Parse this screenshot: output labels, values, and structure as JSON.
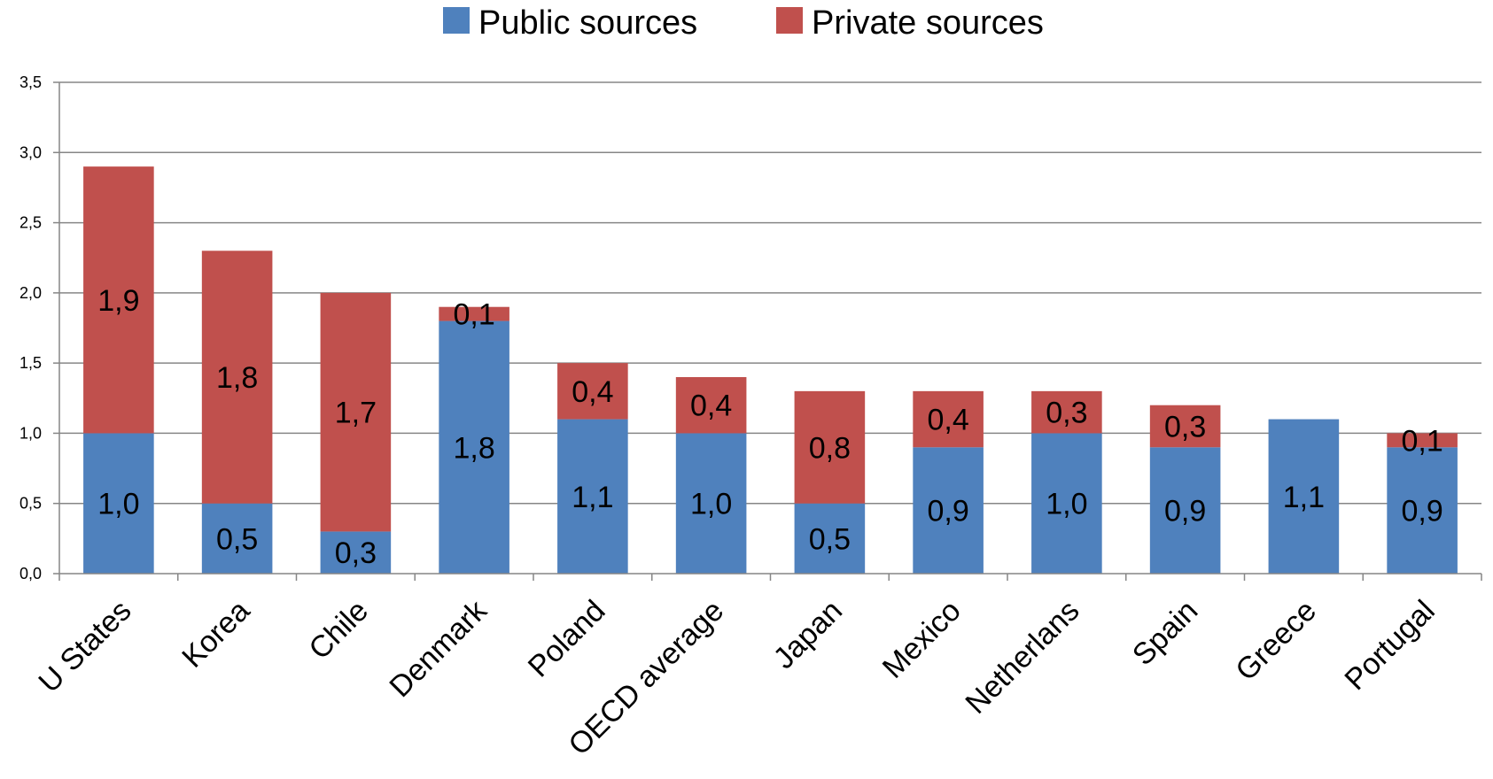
{
  "chart_data": {
    "type": "bar",
    "stacked": true,
    "categories": [
      "U States",
      "Korea",
      "Chile",
      "Denmark",
      "Poland",
      "OECD average",
      "Japan",
      "Mexico",
      "Netherlans",
      "Spain",
      "Greece",
      "Portugal"
    ],
    "series": [
      {
        "name": "Public sources",
        "color": "#4F81BD",
        "values": [
          1.0,
          0.5,
          0.3,
          1.8,
          1.1,
          1.0,
          0.5,
          0.9,
          1.0,
          0.9,
          1.1,
          0.9
        ],
        "labels": [
          "1,0",
          "0,5",
          "0,3",
          "1,8",
          "1,1",
          "1,0",
          "0,5",
          "0,9",
          "1,0",
          "0,9",
          "1,1",
          "0,9"
        ]
      },
      {
        "name": "Private sources",
        "color": "#C0504D",
        "values": [
          1.9,
          1.8,
          1.7,
          0.1,
          0.4,
          0.4,
          0.8,
          0.4,
          0.3,
          0.3,
          0.0,
          0.1
        ],
        "labels": [
          "1,9",
          "1,8",
          "1,7",
          "0,1",
          "0,4",
          "0,4",
          "0,8",
          "0,4",
          "0,3",
          "0,3",
          "",
          "0,1"
        ]
      }
    ],
    "ylim": [
      0,
      3.5
    ],
    "yticks": [
      "0,0",
      "0,5",
      "1,0",
      "1,5",
      "2,0",
      "2,5",
      "3,0",
      "3,5"
    ],
    "grid": true,
    "legend": "top"
  }
}
